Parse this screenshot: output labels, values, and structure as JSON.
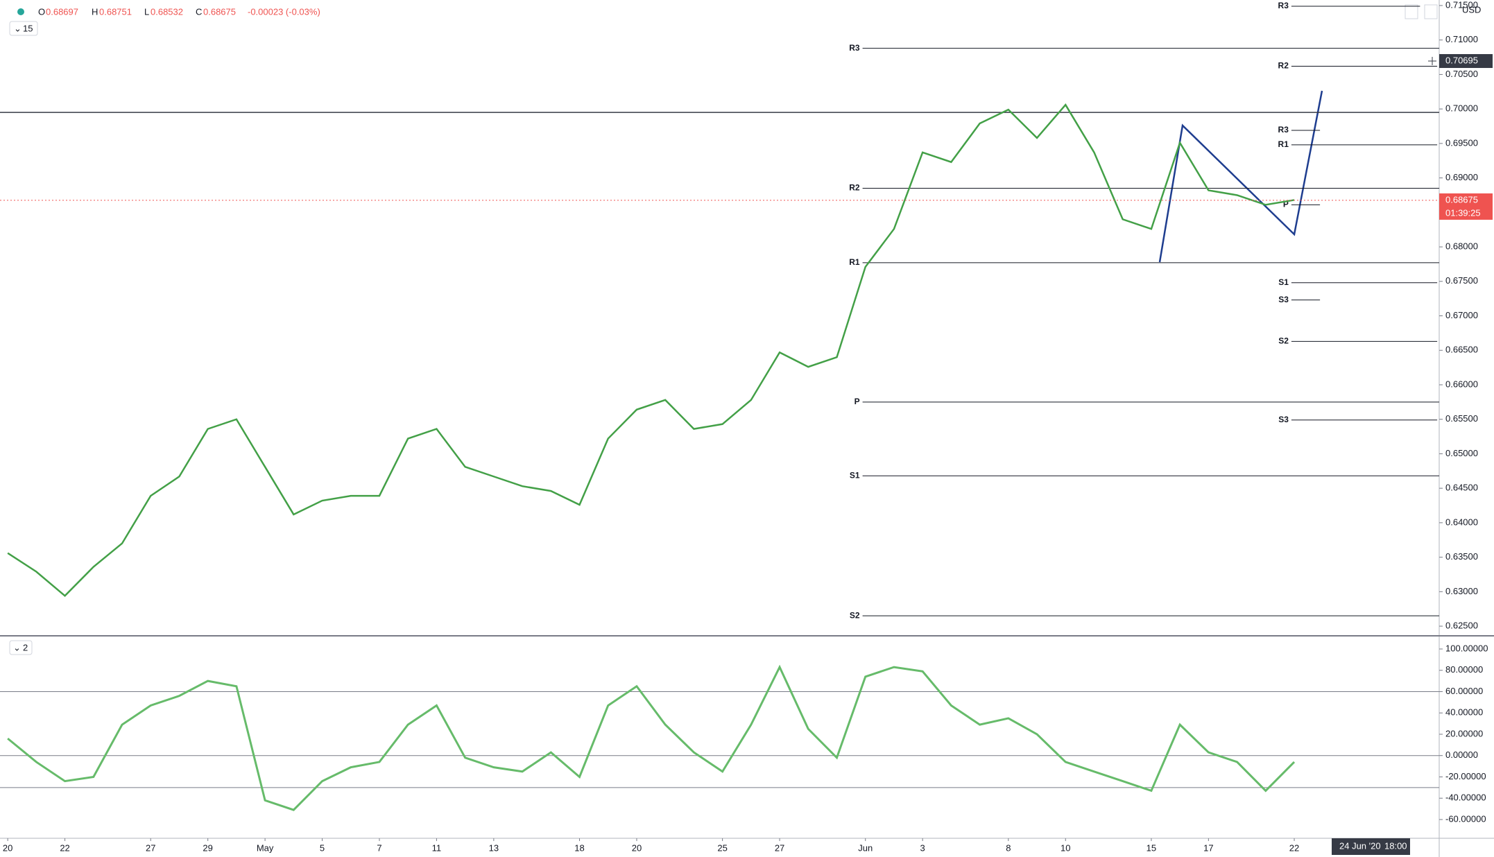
{
  "header": {
    "open_label": "O",
    "open": 0.68697,
    "high_label": "H",
    "high": 0.68751,
    "low_label": "L",
    "low": 0.68532,
    "close_label": "C",
    "close": 0.68675,
    "change": "-0.00023 (-0.03%)",
    "interval": "15",
    "pane": "2",
    "currency": "USD",
    "crosshair_price": 0.70695,
    "countdown": "01:39:25",
    "crosshair_date": "24 Jun '20",
    "crosshair_time": "18:00"
  },
  "chart_data": [
    {
      "type": "line",
      "color": "#43a047",
      "x": [
        0,
        1,
        2,
        3,
        4,
        5,
        6,
        7,
        8,
        9,
        10,
        11,
        12,
        13,
        14,
        15,
        16,
        17,
        18,
        19,
        20,
        21,
        22,
        23,
        24,
        25,
        26,
        27,
        28,
        29,
        30,
        31,
        32,
        33,
        34,
        35,
        36,
        37,
        38,
        39,
        40,
        41,
        42,
        43,
        44,
        45
      ],
      "values": [
        0.6356,
        0.6329,
        0.6294,
        0.6336,
        0.637,
        0.6439,
        0.6467,
        0.6536,
        0.655,
        0.6481,
        0.6412,
        0.6432,
        0.6439,
        0.6439,
        0.6522,
        0.6536,
        0.6481,
        0.6467,
        0.6453,
        0.6446,
        0.6426,
        0.6522,
        0.6564,
        0.6578,
        0.6536,
        0.6543,
        0.6578,
        0.6647,
        0.6626,
        0.664,
        0.6771,
        0.6826,
        0.6937,
        0.6923,
        0.6979,
        0.6999,
        0.6958,
        0.7006,
        0.6937,
        0.684,
        0.6826,
        0.6951,
        0.6882,
        0.6875,
        0.6861,
        0.6868
      ],
      "xlim": [
        -0.27,
        50.07
      ],
      "ylim": [
        0.6237,
        0.7158
      ],
      "yticks": [
        {
          "value": 0.625,
          "label": "0.62500"
        },
        {
          "value": 0.63,
          "label": "0.63000"
        },
        {
          "value": 0.635,
          "label": "0.63500"
        },
        {
          "value": 0.64,
          "label": "0.64000"
        },
        {
          "value": 0.645,
          "label": "0.64500"
        },
        {
          "value": 0.65,
          "label": "0.65000"
        },
        {
          "value": 0.655,
          "label": "0.65500"
        },
        {
          "value": 0.66,
          "label": "0.66000"
        },
        {
          "value": 0.665,
          "label": "0.66500"
        },
        {
          "value": 0.67,
          "label": "0.67000"
        },
        {
          "value": 0.675,
          "label": "0.67500"
        },
        {
          "value": 0.68,
          "label": "0.68000"
        },
        {
          "value": 0.685,
          "label": "0.68500"
        },
        {
          "value": 0.69,
          "label": "0.69000"
        },
        {
          "value": 0.695,
          "label": "0.69500"
        },
        {
          "value": 0.7,
          "label": "0.70000"
        },
        {
          "value": 0.705,
          "label": "0.70500"
        },
        {
          "value": 0.71,
          "label": "0.71000"
        },
        {
          "value": 0.715,
          "label": "0.71500"
        }
      ],
      "hline": 0.6995,
      "last": 0.68675,
      "last_color": "#ef5350",
      "levels": [
        {
          "label": "R3",
          "value": 0.7088,
          "from": 29.9,
          "to": 50.07
        },
        {
          "label": "R2",
          "value": 0.6885,
          "from": 29.9,
          "to": 50.07
        },
        {
          "label": "R1",
          "value": 0.6777,
          "from": 29.9,
          "to": 50.07
        },
        {
          "label": "P",
          "value": 0.6575,
          "from": 29.9,
          "to": 50.07
        },
        {
          "label": "S1",
          "value": 0.6468,
          "from": 29.9,
          "to": 50.07
        },
        {
          "label": "S2",
          "value": 0.6265,
          "from": 29.9,
          "to": 50.07
        },
        {
          "label": "R3",
          "value": 0.7149,
          "from": 44.9,
          "to": 49.4
        },
        {
          "label": "R2",
          "value": 0.7062,
          "from": 44.9,
          "to": 50.0
        },
        {
          "label": "R3",
          "value": 0.6969,
          "from": 44.9,
          "to": 45.9
        },
        {
          "label": "R1",
          "value": 0.6948,
          "from": 44.9,
          "to": 50.0
        },
        {
          "label": "P",
          "value": 0.6861,
          "from": 44.9,
          "to": 45.9
        },
        {
          "label": "S1",
          "value": 0.6748,
          "from": 44.9,
          "to": 50.0
        },
        {
          "label": "S3",
          "value": 0.6723,
          "from": 44.9,
          "to": 45.9
        },
        {
          "label": "S2",
          "value": 0.6663,
          "from": 44.9,
          "to": 50.0
        },
        {
          "label": "S3",
          "value": 0.6549,
          "from": 44.9,
          "to": 50.0
        }
      ]
    },
    {
      "type": "line",
      "color": "#66bb6a",
      "x": [
        0,
        1,
        2,
        3,
        4,
        5,
        6,
        7,
        8,
        9,
        10,
        11,
        12,
        13,
        14,
        15,
        16,
        17,
        18,
        19,
        20,
        21,
        22,
        23,
        24,
        25,
        26,
        27,
        28,
        29,
        30,
        31,
        32,
        33,
        34,
        35,
        36,
        37,
        38,
        39,
        40,
        41,
        42,
        43,
        44,
        45
      ],
      "values": [
        16,
        -6,
        -24,
        -20,
        29,
        47,
        56,
        70,
        65,
        -42,
        -51,
        -24,
        -11,
        -6,
        29,
        47,
        -2,
        -11,
        -15,
        3,
        -20,
        47,
        65,
        29,
        3,
        -15,
        29,
        83,
        25,
        -2,
        74,
        83,
        79,
        47,
        29,
        35,
        20,
        -6,
        -15,
        -24,
        -33,
        29,
        3,
        -6,
        -33,
        -6
      ],
      "xlim": [
        -0.27,
        50.07
      ],
      "ylim": [
        -77.6,
        111.7
      ],
      "yticks": [
        {
          "value": 100,
          "label": "100.00000"
        },
        {
          "value": 80,
          "label": "80.00000"
        },
        {
          "value": 60,
          "label": "60.00000"
        },
        {
          "value": 40,
          "label": "40.00000"
        },
        {
          "value": 20,
          "label": "20.00000"
        },
        {
          "value": 0,
          "label": "0.00000"
        },
        {
          "value": -20,
          "label": "-20.00000"
        },
        {
          "value": -40,
          "label": "-40.00000"
        },
        {
          "value": -60,
          "label": "-60.00000"
        }
      ],
      "hlines": [
        60,
        0,
        -30
      ],
      "xticks": [
        {
          "value": 0,
          "label": "20"
        },
        {
          "value": 2,
          "label": "22"
        },
        {
          "value": 5,
          "label": "27"
        },
        {
          "value": 7,
          "label": "29"
        },
        {
          "value": 9,
          "label": "May"
        },
        {
          "value": 11,
          "label": "5"
        },
        {
          "value": 13,
          "label": "7"
        },
        {
          "value": 15,
          "label": "11"
        },
        {
          "value": 17,
          "label": "13"
        },
        {
          "value": 20,
          "label": "18"
        },
        {
          "value": 22,
          "label": "20"
        },
        {
          "value": 25,
          "label": "25"
        },
        {
          "value": 27,
          "label": "27"
        },
        {
          "value": 30,
          "label": "Jun"
        },
        {
          "value": 32,
          "label": "3"
        },
        {
          "value": 35,
          "label": "8"
        },
        {
          "value": 37,
          "label": "10"
        },
        {
          "value": 40,
          "label": "15"
        },
        {
          "value": 42,
          "label": "17"
        },
        {
          "value": 45,
          "label": "22"
        }
      ]
    }
  ]
}
